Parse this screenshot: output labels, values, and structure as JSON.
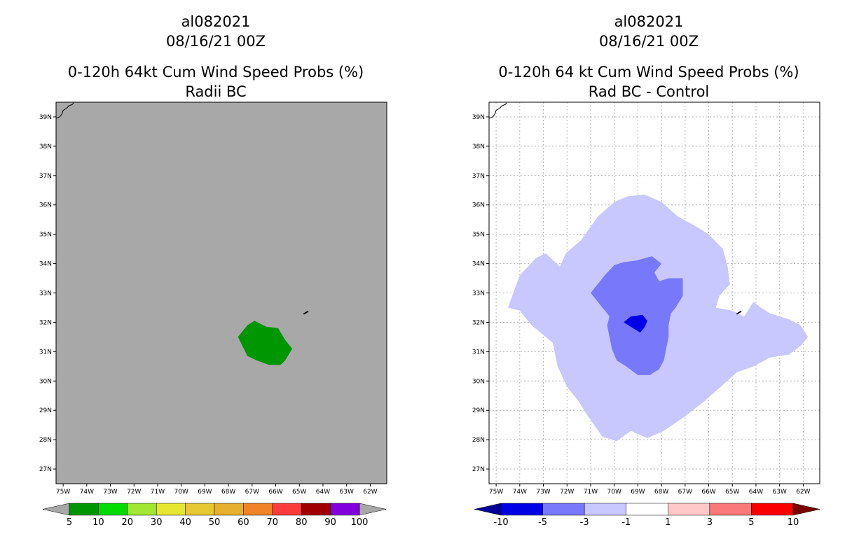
{
  "left_panel": {
    "title_lines": [
      "al082021",
      "08/16/21 00Z",
      "0-120h 64kt Cum Wind Speed Probs (%)",
      "Radii BC"
    ],
    "background_color": "#a8a8a8",
    "fill_color": "#009600",
    "colorbar": {
      "labels": [
        "5",
        "10",
        "20",
        "30",
        "40",
        "50",
        "60",
        "70",
        "80",
        "90",
        "100"
      ],
      "colors": [
        "#009600",
        "#00dc00",
        "#a0e632",
        "#e6e632",
        "#e6c832",
        "#e6af2d",
        "#f08228",
        "#fa3c3c",
        "#a00000",
        "#8200dc"
      ],
      "end_color": "#a8a8a8"
    }
  },
  "right_panel": {
    "title_lines": [
      "al082021",
      "08/16/21 00Z",
      "0-120h 64 kt Cum Wind Speed Probs (%)",
      "Rad BC - Control"
    ],
    "background_color": "#ffffff",
    "fill_colors": {
      "light": "#c8c8ff",
      "medium": "#7878fa",
      "dark": "#0000e6"
    },
    "colorbar": {
      "labels": [
        "-10",
        "-5",
        "-3",
        "-1",
        "1",
        "3",
        "5",
        "10"
      ],
      "colors": [
        "#0000e6",
        "#7878fa",
        "#c8c8ff",
        "#ffffff",
        "#ffc8c8",
        "#fa7878",
        "#fa0000"
      ],
      "end_left_color": "#000096",
      "end_right_color": "#780000"
    }
  },
  "axes": {
    "lon_labels": [
      "75W",
      "74W",
      "73W",
      "72W",
      "71W",
      "70W",
      "69W",
      "68W",
      "67W",
      "66W",
      "65W",
      "64W",
      "63W",
      "62W"
    ],
    "lat_labels": [
      "27N",
      "28N",
      "29N",
      "30N",
      "31N",
      "32N",
      "33N",
      "34N",
      "35N",
      "36N",
      "37N",
      "38N",
      "39N"
    ],
    "lon_range": [
      -75.3,
      -61.3
    ],
    "lat_range": [
      26.5,
      39.5
    ]
  },
  "geo": {
    "left_green_region": [
      [
        -67.6,
        31.5
      ],
      [
        -67.2,
        31.9
      ],
      [
        -66.9,
        32.05
      ],
      [
        -66.4,
        31.85
      ],
      [
        -65.9,
        31.8
      ],
      [
        -65.6,
        31.4
      ],
      [
        -65.3,
        31.1
      ],
      [
        -65.6,
        30.7
      ],
      [
        -65.8,
        30.55
      ],
      [
        -66.3,
        30.55
      ],
      [
        -66.8,
        30.7
      ],
      [
        -67.2,
        30.85
      ]
    ],
    "right_light_region": [
      [
        -74.5,
        32.5
      ],
      [
        -74,
        33.6
      ],
      [
        -73.3,
        34.2
      ],
      [
        -72.9,
        34.35
      ],
      [
        -72.3,
        33.9
      ],
      [
        -72.05,
        34.35
      ],
      [
        -71.4,
        34.8
      ],
      [
        -70.7,
        35.6
      ],
      [
        -70,
        36.1
      ],
      [
        -69.4,
        36.3
      ],
      [
        -68.7,
        36.35
      ],
      [
        -68,
        36.1
      ],
      [
        -67.3,
        35.6
      ],
      [
        -66.6,
        35.3
      ],
      [
        -66,
        35
      ],
      [
        -65.4,
        34.5
      ],
      [
        -65.2,
        33.9
      ],
      [
        -65.1,
        33.3
      ],
      [
        -65.55,
        32.9
      ],
      [
        -65.7,
        32.5
      ],
      [
        -65,
        32.4
      ],
      [
        -64.5,
        32.2
      ],
      [
        -64.1,
        32.7
      ],
      [
        -63.8,
        32.5
      ],
      [
        -63.4,
        32.3
      ],
      [
        -62.6,
        32.1
      ],
      [
        -62.1,
        31.9
      ],
      [
        -61.8,
        31.5
      ],
      [
        -62.1,
        31.2
      ],
      [
        -62.6,
        30.9
      ],
      [
        -63.4,
        30.8
      ],
      [
        -64.1,
        30.5
      ],
      [
        -64.8,
        30.3
      ],
      [
        -65.5,
        29.8
      ],
      [
        -66.2,
        29.3
      ],
      [
        -67,
        28.8
      ],
      [
        -67.9,
        28.3
      ],
      [
        -68.6,
        28.05
      ],
      [
        -69.3,
        28.3
      ],
      [
        -69.9,
        27.95
      ],
      [
        -70.5,
        28.1
      ],
      [
        -71.2,
        28.9
      ],
      [
        -71.5,
        29.3
      ],
      [
        -72,
        29.8
      ],
      [
        -72.4,
        30.5
      ],
      [
        -72.6,
        31.3
      ],
      [
        -73.5,
        31.9
      ],
      [
        -74,
        32.4
      ]
    ],
    "right_medium_region": [
      [
        -71,
        33
      ],
      [
        -70.7,
        33.3
      ],
      [
        -70.4,
        33.6
      ],
      [
        -70,
        33.95
      ],
      [
        -69.6,
        34.05
      ],
      [
        -69.1,
        34.1
      ],
      [
        -68.4,
        34.25
      ],
      [
        -68,
        34
      ],
      [
        -68.3,
        33.7
      ],
      [
        -68.1,
        33.4
      ],
      [
        -67.7,
        33.5
      ],
      [
        -67.1,
        33.5
      ],
      [
        -67.1,
        32.9
      ],
      [
        -67.4,
        32.5
      ],
      [
        -67.6,
        32.3
      ],
      [
        -67.7,
        31.9
      ],
      [
        -67.7,
        31.5
      ],
      [
        -67.8,
        31.1
      ],
      [
        -67.9,
        30.7
      ],
      [
        -68.1,
        30.4
      ],
      [
        -68.5,
        30.2
      ],
      [
        -69,
        30.2
      ],
      [
        -69.5,
        30.5
      ],
      [
        -69.9,
        30.7
      ],
      [
        -70.1,
        31.1
      ],
      [
        -70.2,
        31.5
      ],
      [
        -70.3,
        31.9
      ],
      [
        -70.2,
        32.2
      ],
      [
        -70.5,
        32.5
      ],
      [
        -70.8,
        32.8
      ]
    ],
    "right_dark_region": [
      [
        -69.6,
        32.0
      ],
      [
        -69.3,
        32.2
      ],
      [
        -68.8,
        32.25
      ],
      [
        -68.6,
        32.05
      ],
      [
        -68.7,
        31.85
      ],
      [
        -68.9,
        31.65
      ],
      [
        -69.3,
        31.85
      ]
    ],
    "coastline": [
      [
        -75.3,
        38.95
      ],
      [
        -75.15,
        39.0
      ],
      [
        -75.05,
        39.1
      ],
      [
        -75.0,
        39.22
      ],
      [
        -74.85,
        39.3
      ],
      [
        -74.75,
        39.38
      ],
      [
        -74.62,
        39.42
      ],
      [
        -74.55,
        39.48
      ]
    ],
    "island": [
      [
        -64.82,
        32.28
      ],
      [
        -64.7,
        32.34
      ],
      [
        -64.62,
        32.38
      ]
    ]
  }
}
